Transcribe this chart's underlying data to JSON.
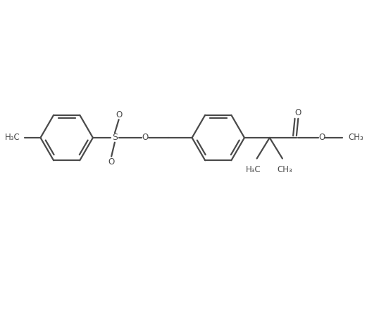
{
  "bg_color": "#ffffff",
  "line_color": "#4a4a4a",
  "line_width": 1.6,
  "font_size": 8.5,
  "font_family": "DejaVu Sans",
  "figsize": [
    5.21,
    4.54
  ],
  "dpi": 100,
  "xlim": [
    0,
    10.5
  ],
  "ylim": [
    0,
    9.0
  ]
}
